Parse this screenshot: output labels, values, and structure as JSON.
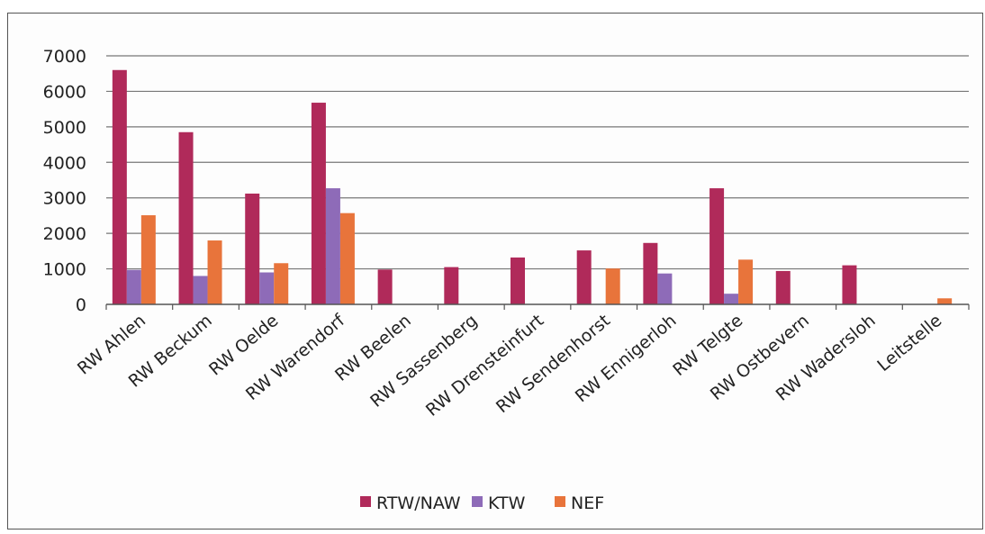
{
  "chart_data": {
    "type": "bar",
    "categories": [
      "RW Ahlen",
      "RW Beckum",
      "RW Oelde",
      "RW Warendorf",
      "RW Beelen",
      "RW Sassenberg",
      "RW Drensteinfurt",
      "RW Sendenhorst",
      "RW Ennigerloh",
      "RW Telgte",
      "RW Ostbevern",
      "RW Wadersloh",
      "Leitstelle"
    ],
    "series": [
      {
        "name": "RTW/NAW",
        "color": "#b02a5a",
        "values": [
          6600,
          4850,
          3120,
          5680,
          980,
          1050,
          1320,
          1520,
          1730,
          3270,
          940,
          1100,
          0
        ]
      },
      {
        "name": "KTW",
        "color": "#8e6bb8",
        "values": [
          970,
          800,
          900,
          3270,
          0,
          0,
          0,
          0,
          870,
          300,
          0,
          0,
          0
        ]
      },
      {
        "name": "NEF",
        "color": "#e8743b",
        "values": [
          2510,
          1800,
          1160,
          2570,
          0,
          0,
          0,
          1010,
          0,
          1260,
          0,
          0,
          170
        ]
      }
    ],
    "yticks": [
      "0",
      "1000",
      "2000",
      "3000",
      "4000",
      "5000",
      "6000",
      "7000"
    ],
    "ylim": [
      0,
      7000
    ],
    "grid": true,
    "legend_position": "bottom"
  }
}
